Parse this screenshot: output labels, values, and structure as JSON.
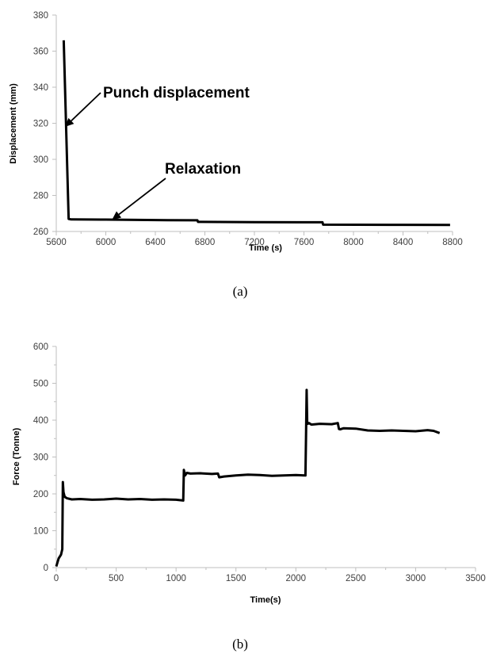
{
  "chart_data": [
    {
      "type": "line",
      "caption": "(a)",
      "xlabel": "Time (s)",
      "ylabel": "Displacement (mm)",
      "xlim": [
        5600,
        8800
      ],
      "ylim": [
        260,
        380
      ],
      "xticks": [
        5600,
        6000,
        6400,
        6800,
        7200,
        7600,
        8000,
        8400,
        8800
      ],
      "yticks": [
        260,
        280,
        300,
        320,
        340,
        360,
        380
      ],
      "grid": false,
      "annotations": [
        {
          "text": "Punch displacement",
          "points_to_x": 5670,
          "points_to_y": 318
        },
        {
          "text": "Relaxation",
          "points_to_x": 6050,
          "points_to_y": 266.5
        }
      ],
      "series": [
        {
          "x": [
            5660,
            5700,
            5720,
            6000,
            6500,
            6740,
            6745,
            7200,
            7750,
            7755,
            8300,
            8780
          ],
          "y": [
            366,
            267,
            266.7,
            266.6,
            266.3,
            266.2,
            265.3,
            265.2,
            265.1,
            263.8,
            263.7,
            263.6
          ]
        }
      ]
    },
    {
      "type": "line",
      "caption": "(b)",
      "xlabel": "Time(s)",
      "ylabel": "Force (Tonne)",
      "xlim": [
        0,
        3500
      ],
      "ylim": [
        0,
        600
      ],
      "xticks": [
        0,
        500,
        1000,
        1500,
        2000,
        2500,
        3000,
        3500
      ],
      "yticks": [
        0,
        100,
        200,
        300,
        400,
        500,
        600
      ],
      "grid": false,
      "series": [
        {
          "x": [
            0,
            20,
            40,
            50,
            55,
            60,
            70,
            90,
            130,
            200,
            300,
            400,
            500,
            600,
            700,
            800,
            900,
            1000,
            1060,
            1065,
            1075,
            1090,
            1120,
            1200,
            1300,
            1350,
            1360,
            1400,
            1500,
            1600,
            1700,
            1800,
            1900,
            2000,
            2080,
            2085,
            2090,
            2095,
            2100,
            2110,
            2130,
            2200,
            2300,
            2350,
            2360,
            2370,
            2400,
            2500,
            2600,
            2700,
            2800,
            2900,
            3000,
            3100,
            3150,
            3200
          ],
          "y": [
            3,
            25,
            35,
            50,
            232,
            205,
            192,
            188,
            185,
            186,
            184,
            185,
            187,
            185,
            186,
            184,
            185,
            184,
            182,
            265,
            250,
            257,
            255,
            256,
            254,
            255,
            245,
            247,
            250,
            252,
            251,
            249,
            250,
            251,
            250,
            352,
            482,
            395,
            390,
            392,
            388,
            390,
            389,
            392,
            376,
            375,
            378,
            377,
            372,
            371,
            372,
            371,
            370,
            373,
            371,
            365
          ]
        }
      ]
    }
  ]
}
